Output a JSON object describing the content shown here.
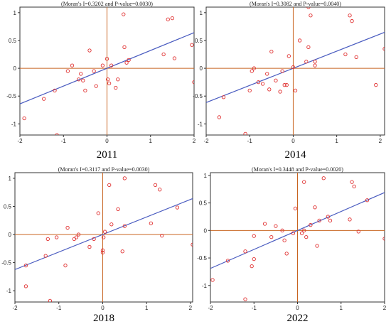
{
  "chart_data": [
    {
      "type": "scatter",
      "title": "(Moran's I=0.3202 and P-value=0.0030)",
      "caption": "2011",
      "xlim": [
        -2,
        2
      ],
      "ylim": [
        -1.2,
        1.1
      ],
      "xticks": [
        -2,
        -1,
        0,
        1,
        2
      ],
      "yticks": [
        -1,
        -0.5,
        0,
        0.5,
        1
      ],
      "xtick_labels": [
        "-2",
        "-1",
        "0",
        "1",
        "2"
      ],
      "ytick_labels": [
        "-1",
        "-0.5",
        "0",
        "0.5",
        "1"
      ],
      "slope": 0.3202,
      "points": [
        [
          -1.9,
          -0.9
        ],
        [
          -1.45,
          -0.55
        ],
        [
          -1.2,
          -0.4
        ],
        [
          -1.15,
          -1.2
        ],
        [
          -0.9,
          -0.05
        ],
        [
          -0.8,
          0.05
        ],
        [
          -0.65,
          -0.2
        ],
        [
          -0.6,
          -0.1
        ],
        [
          -0.55,
          -0.22
        ],
        [
          -0.5,
          -0.4
        ],
        [
          -0.4,
          0.32
        ],
        [
          -0.3,
          -0.05
        ],
        [
          -0.25,
          -0.32
        ],
        [
          -0.1,
          0.05
        ],
        [
          0.0,
          0.17
        ],
        [
          0.02,
          -0.2
        ],
        [
          0.05,
          -0.27
        ],
        [
          0.1,
          0.05
        ],
        [
          0.2,
          -0.35
        ],
        [
          0.25,
          -0.2
        ],
        [
          0.38,
          0.97
        ],
        [
          0.4,
          0.38
        ],
        [
          0.45,
          0.1
        ],
        [
          0.5,
          0.15
        ],
        [
          1.3,
          0.25
        ],
        [
          1.4,
          0.88
        ],
        [
          1.5,
          0.9
        ],
        [
          1.55,
          0.18
        ],
        [
          1.95,
          0.42
        ],
        [
          2.0,
          -0.25
        ]
      ]
    },
    {
      "type": "scatter",
      "title": "(Moran's I=0.3082 and P-value=0.0040)",
      "caption": "2014",
      "xlim": [
        -2,
        2.1
      ],
      "ylim": [
        -1.2,
        1.1
      ],
      "xticks": [
        -2,
        -1,
        0,
        1,
        2
      ],
      "yticks": [
        -1,
        -0.5,
        0,
        0.5,
        1
      ],
      "xtick_labels": [
        "-2",
        "-1",
        "0",
        "1",
        "2"
      ],
      "ytick_labels": [
        "-1",
        "-0.5",
        "0",
        "0.5",
        "1"
      ],
      "slope": 0.3082,
      "points": [
        [
          -1.7,
          -0.88
        ],
        [
          -1.6,
          -0.52
        ],
        [
          -1.1,
          -1.18
        ],
        [
          -1.0,
          -0.4
        ],
        [
          -0.95,
          -0.05
        ],
        [
          -0.9,
          0.0
        ],
        [
          -0.8,
          -0.25
        ],
        [
          -0.7,
          -0.28
        ],
        [
          -0.6,
          -0.1
        ],
        [
          -0.55,
          -0.38
        ],
        [
          -0.5,
          0.3
        ],
        [
          -0.4,
          -0.22
        ],
        [
          -0.3,
          -0.42
        ],
        [
          -0.25,
          -0.05
        ],
        [
          -0.2,
          -0.3
        ],
        [
          -0.15,
          -0.3
        ],
        [
          -0.1,
          0.22
        ],
        [
          0.0,
          0.02
        ],
        [
          0.05,
          -0.4
        ],
        [
          0.15,
          0.5
        ],
        [
          0.3,
          0.12
        ],
        [
          0.35,
          0.38
        ],
        [
          0.4,
          0.95
        ],
        [
          0.5,
          0.12
        ],
        [
          0.5,
          0.05
        ],
        [
          0.35,
          1.1
        ],
        [
          1.2,
          0.25
        ],
        [
          1.3,
          0.95
        ],
        [
          1.35,
          0.85
        ],
        [
          1.45,
          0.2
        ],
        [
          1.9,
          -0.3
        ],
        [
          2.1,
          0.35
        ]
      ]
    },
    {
      "type": "scatter",
      "title": "(Moran's I=0.3117 and P-value=0.0030)",
      "caption": "2018",
      "xlim": [
        -2,
        2.05
      ],
      "ylim": [
        -1.2,
        1.1
      ],
      "xticks": [
        -2,
        -1,
        0,
        1,
        2
      ],
      "yticks": [
        -1,
        -0.5,
        0,
        0.5,
        1
      ],
      "xtick_labels": [
        "-2",
        "-1",
        "0",
        "1",
        "2"
      ],
      "ytick_labels": [
        "-1",
        "-0.5",
        "0",
        "0.5",
        "1"
      ],
      "slope": 0.3117,
      "points": [
        [
          -1.75,
          -0.55
        ],
        [
          -1.75,
          -0.92
        ],
        [
          -1.3,
          -0.38
        ],
        [
          -1.25,
          -0.08
        ],
        [
          -1.2,
          -1.18
        ],
        [
          -1.05,
          -0.05
        ],
        [
          -0.85,
          -0.55
        ],
        [
          -0.8,
          0.12
        ],
        [
          -0.65,
          -0.08
        ],
        [
          -0.6,
          -0.05
        ],
        [
          -0.55,
          0.0
        ],
        [
          -0.3,
          -0.22
        ],
        [
          -0.2,
          -0.08
        ],
        [
          -0.1,
          0.38
        ],
        [
          0.0,
          -0.28
        ],
        [
          0.0,
          -0.32
        ],
        [
          0.02,
          -0.05
        ],
        [
          0.05,
          0.05
        ],
        [
          0.15,
          0.88
        ],
        [
          0.2,
          0.18
        ],
        [
          0.35,
          0.45
        ],
        [
          0.45,
          -0.3
        ],
        [
          0.5,
          0.15
        ],
        [
          0.5,
          1.0
        ],
        [
          1.1,
          0.2
        ],
        [
          1.2,
          0.88
        ],
        [
          1.3,
          0.8
        ],
        [
          1.35,
          -0.02
        ],
        [
          1.7,
          0.48
        ],
        [
          2.05,
          -0.18
        ]
      ]
    },
    {
      "type": "scatter",
      "title": "(Moran's I=0.3448 and P-value=0.0020)",
      "caption": "2022",
      "xlim": [
        -2,
        2
      ],
      "ylim": [
        -1.3,
        1.05
      ],
      "xticks": [
        -2,
        -1,
        0,
        1,
        2
      ],
      "yticks": [
        -1,
        -0.5,
        0,
        0.5,
        1
      ],
      "xtick_labels": [
        "-2",
        "-1",
        "0",
        "1",
        "2"
      ],
      "ytick_labels": [
        "-1",
        "-0.5",
        "0",
        "0.5",
        "1"
      ],
      "slope": 0.3448,
      "points": [
        [
          -1.95,
          -0.9
        ],
        [
          -1.6,
          -0.55
        ],
        [
          -1.2,
          -1.25
        ],
        [
          -1.2,
          -0.38
        ],
        [
          -1.05,
          -0.65
        ],
        [
          -1.0,
          -0.52
        ],
        [
          -1.0,
          -0.1
        ],
        [
          -0.75,
          0.12
        ],
        [
          -0.6,
          -0.12
        ],
        [
          -0.5,
          0.08
        ],
        [
          -0.35,
          0.0
        ],
        [
          -0.3,
          -0.18
        ],
        [
          -0.25,
          -0.42
        ],
        [
          -0.1,
          -0.05
        ],
        [
          -0.05,
          0.4
        ],
        [
          0.1,
          -0.05
        ],
        [
          0.15,
          0.88
        ],
        [
          0.2,
          -0.12
        ],
        [
          0.3,
          0.1
        ],
        [
          0.4,
          0.42
        ],
        [
          0.45,
          -0.28
        ],
        [
          0.5,
          0.18
        ],
        [
          0.7,
          0.25
        ],
        [
          0.75,
          0.18
        ],
        [
          1.2,
          0.2
        ],
        [
          1.25,
          0.88
        ],
        [
          1.3,
          0.8
        ],
        [
          1.4,
          -0.02
        ],
        [
          1.6,
          0.55
        ],
        [
          2.0,
          -0.15
        ],
        [
          0.15,
          0.0
        ],
        [
          0.6,
          0.95
        ]
      ]
    }
  ],
  "colors": {
    "points": "#e03030",
    "fit_line": "#4a5cc0",
    "axes": "#c86420",
    "frame": "#333333"
  }
}
